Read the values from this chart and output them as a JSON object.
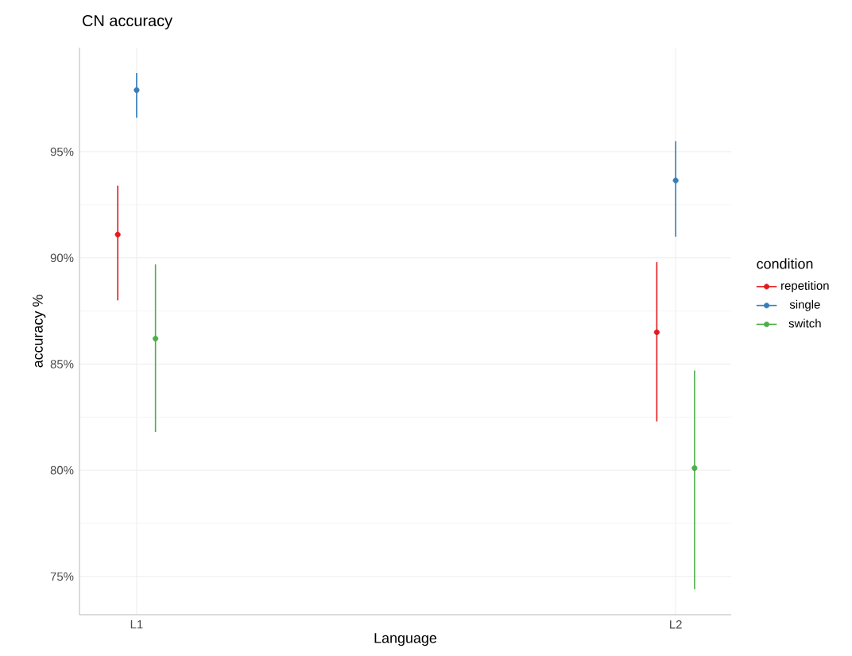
{
  "chart_data": {
    "type": "scatter",
    "title": "CN accuracy",
    "xlabel": "Language",
    "ylabel": "accuracy %",
    "legend_title": "condition",
    "categories": [
      "L1",
      "L2"
    ],
    "series": [
      {
        "name": "repetition",
        "color": "#e41a1c",
        "values": [
          91.1,
          86.5
        ],
        "errors": [
          [
            88.0,
            93.4
          ],
          [
            82.3,
            89.8
          ]
        ]
      },
      {
        "name": "single",
        "color": "#377eb8",
        "values": [
          97.9,
          93.65
        ],
        "errors": [
          [
            96.6,
            98.7
          ],
          [
            91.0,
            95.5
          ]
        ]
      },
      {
        "name": "switch",
        "color": "#4daf4a",
        "values": [
          86.2,
          80.1
        ],
        "errors": [
          [
            81.8,
            89.7
          ],
          [
            74.4,
            84.7
          ]
        ]
      }
    ],
    "ylim": [
      73.2,
      99.9
    ],
    "yticks": [
      {
        "value": 75,
        "label": "75%"
      },
      {
        "value": 80,
        "label": "80%"
      },
      {
        "value": 85,
        "label": "85%"
      },
      {
        "value": 90,
        "label": "90%"
      },
      {
        "value": 95,
        "label": "95%"
      }
    ],
    "grid": true,
    "legend": "right",
    "marker": "circle"
  }
}
